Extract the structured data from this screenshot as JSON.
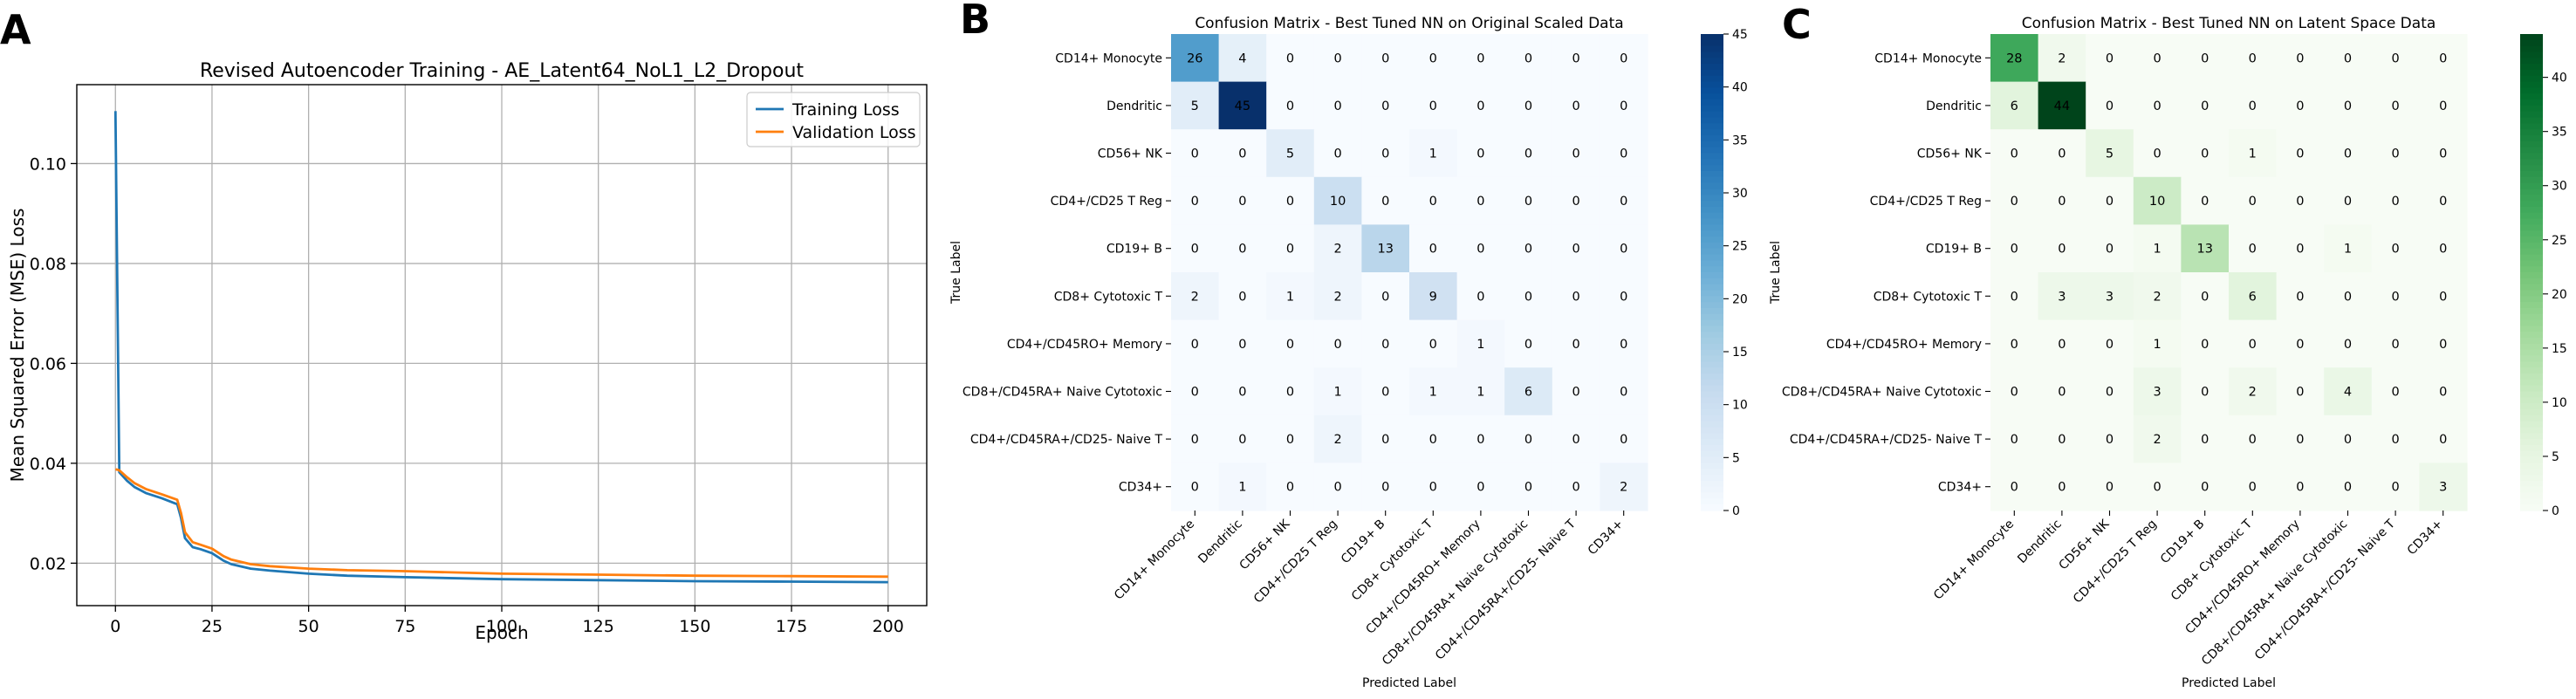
{
  "panels": {
    "a": "A",
    "b": "B",
    "c": "C"
  },
  "chart_data": [
    {
      "type": "line",
      "title": "Revised Autoencoder Training - AE_Latent64_NoL1_L2_Dropout",
      "xlabel": "Epoch",
      "ylabel": "Mean Squared Error (MSE) Loss",
      "xlim": [
        -10,
        210
      ],
      "ylim": [
        0.0115,
        0.1158
      ],
      "xticks": [
        0,
        25,
        50,
        75,
        100,
        125,
        150,
        175,
        200
      ],
      "yticks": [
        0.02,
        0.04,
        0.06,
        0.08,
        0.1
      ],
      "ytick_labels": [
        "0.02",
        "0.04",
        "0.06",
        "0.08",
        "0.10"
      ],
      "grid": true,
      "legend": "top-right",
      "series": [
        {
          "name": "Training Loss",
          "color": "#1f77b4",
          "points": [
            [
              0,
              0.1105
            ],
            [
              1,
              0.0382
            ],
            [
              3,
              0.0365
            ],
            [
              5,
              0.0352
            ],
            [
              8,
              0.034
            ],
            [
              12,
              0.033
            ],
            [
              16,
              0.0318
            ],
            [
              17,
              0.029
            ],
            [
              18,
              0.025
            ],
            [
              20,
              0.0232
            ],
            [
              22,
              0.0228
            ],
            [
              25,
              0.022
            ],
            [
              28,
              0.0205
            ],
            [
              30,
              0.0198
            ],
            [
              35,
              0.0189
            ],
            [
              40,
              0.0185
            ],
            [
              50,
              0.0179
            ],
            [
              60,
              0.0175
            ],
            [
              75,
              0.0172
            ],
            [
              100,
              0.0168
            ],
            [
              125,
              0.0166
            ],
            [
              150,
              0.0164
            ],
            [
              175,
              0.0163
            ],
            [
              200,
              0.0162
            ]
          ]
        },
        {
          "name": "Validation Loss",
          "color": "#ff7f0e",
          "points": [
            [
              0,
              0.0388
            ],
            [
              1,
              0.0386
            ],
            [
              3,
              0.0372
            ],
            [
              5,
              0.036
            ],
            [
              8,
              0.0348
            ],
            [
              12,
              0.0338
            ],
            [
              16,
              0.0327
            ],
            [
              17,
              0.03
            ],
            [
              18,
              0.0262
            ],
            [
              20,
              0.0242
            ],
            [
              22,
              0.0237
            ],
            [
              25,
              0.0229
            ],
            [
              28,
              0.0214
            ],
            [
              30,
              0.0207
            ],
            [
              35,
              0.0198
            ],
            [
              40,
              0.0194
            ],
            [
              50,
              0.0189
            ],
            [
              60,
              0.0186
            ],
            [
              75,
              0.0184
            ],
            [
              100,
              0.0179
            ],
            [
              125,
              0.0177
            ],
            [
              150,
              0.0175
            ],
            [
              175,
              0.0174
            ],
            [
              200,
              0.0173
            ]
          ]
        }
      ]
    },
    {
      "type": "heatmap",
      "title": "Confusion Matrix - Best Tuned NN on Original Scaled Data",
      "xlabel": "Predicted Label",
      "ylabel": "True Label",
      "colormap": "Blues",
      "vmin": 0,
      "vmax": 45,
      "colorbar_ticks": [
        0,
        5,
        10,
        15,
        20,
        25,
        30,
        35,
        40,
        45
      ],
      "labels": [
        "CD14+ Monocyte",
        "Dendritic",
        "CD56+ NK",
        "CD4+/CD25 T Reg",
        "CD19+ B",
        "CD8+ Cytotoxic T",
        "CD4+/CD45RO+ Memory",
        "CD8+/CD45RA+ Naive Cytotoxic",
        "CD4+/CD45RA+/CD25- Naive T",
        "CD34+"
      ],
      "matrix": [
        [
          26,
          4,
          0,
          0,
          0,
          0,
          0,
          0,
          0,
          0
        ],
        [
          5,
          45,
          0,
          0,
          0,
          0,
          0,
          0,
          0,
          0
        ],
        [
          0,
          0,
          5,
          0,
          0,
          1,
          0,
          0,
          0,
          0
        ],
        [
          0,
          0,
          0,
          10,
          0,
          0,
          0,
          0,
          0,
          0
        ],
        [
          0,
          0,
          0,
          2,
          13,
          0,
          0,
          0,
          0,
          0
        ],
        [
          2,
          0,
          1,
          2,
          0,
          9,
          0,
          0,
          0,
          0
        ],
        [
          0,
          0,
          0,
          0,
          0,
          0,
          1,
          0,
          0,
          0
        ],
        [
          0,
          0,
          0,
          1,
          0,
          1,
          1,
          6,
          0,
          0
        ],
        [
          0,
          0,
          0,
          2,
          0,
          0,
          0,
          0,
          0,
          0
        ],
        [
          0,
          1,
          0,
          0,
          0,
          0,
          0,
          0,
          0,
          2
        ]
      ]
    },
    {
      "type": "heatmap",
      "title": "Confusion Matrix - Best Tuned NN on Latent Space Data",
      "xlabel": "Predicted Label",
      "ylabel": "True Label",
      "colormap": "Greens",
      "vmin": 0,
      "vmax": 44,
      "colorbar_ticks": [
        0,
        5,
        10,
        15,
        20,
        25,
        30,
        35,
        40
      ],
      "labels": [
        "CD14+ Monocyte",
        "Dendritic",
        "CD56+ NK",
        "CD4+/CD25 T Reg",
        "CD19+ B",
        "CD8+ Cytotoxic T",
        "CD4+/CD45RO+ Memory",
        "CD8+/CD45RA+ Naive Cytotoxic",
        "CD4+/CD45RA+/CD25- Naive T",
        "CD34+"
      ],
      "matrix": [
        [
          28,
          2,
          0,
          0,
          0,
          0,
          0,
          0,
          0,
          0
        ],
        [
          6,
          44,
          0,
          0,
          0,
          0,
          0,
          0,
          0,
          0
        ],
        [
          0,
          0,
          5,
          0,
          0,
          1,
          0,
          0,
          0,
          0
        ],
        [
          0,
          0,
          0,
          10,
          0,
          0,
          0,
          0,
          0,
          0
        ],
        [
          0,
          0,
          0,
          1,
          13,
          0,
          0,
          1,
          0,
          0
        ],
        [
          0,
          3,
          3,
          2,
          0,
          6,
          0,
          0,
          0,
          0
        ],
        [
          0,
          0,
          0,
          1,
          0,
          0,
          0,
          0,
          0,
          0
        ],
        [
          0,
          0,
          0,
          3,
          0,
          2,
          0,
          4,
          0,
          0
        ],
        [
          0,
          0,
          0,
          2,
          0,
          0,
          0,
          0,
          0,
          0
        ],
        [
          0,
          0,
          0,
          0,
          0,
          0,
          0,
          0,
          0,
          3
        ]
      ]
    }
  ]
}
